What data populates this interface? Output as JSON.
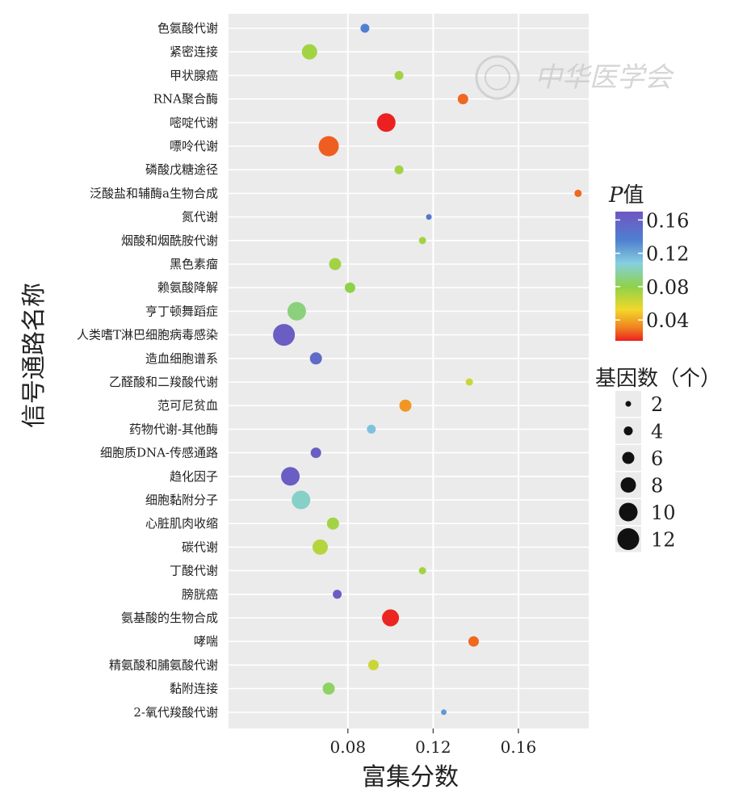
{
  "watermark_text": "中华医学会",
  "chart_data": {
    "type": "scatter",
    "xlabel": "富集分数",
    "ylabel": "信号通路名称",
    "xticks": [
      "0.08",
      "0.12",
      "0.16"
    ],
    "xlim": [
      0.024,
      0.193
    ],
    "grid": true,
    "legend_position": "right",
    "color_legend": {
      "title_italic": "P",
      "title_rest": "值",
      "ticks": [
        "0.16",
        "0.12",
        "0.08",
        "0.04"
      ],
      "range": [
        0.015,
        0.17
      ]
    },
    "size_legend": {
      "title": "基因数（个）",
      "values": [
        "2",
        "4",
        "6",
        "8",
        "10",
        "12"
      ]
    },
    "points": [
      {
        "pathway": "色氨酸代谢",
        "x": 0.088,
        "genes": 4,
        "p": 0.14
      },
      {
        "pathway": "紧密连接",
        "x": 0.062,
        "genes": 8,
        "p": 0.075
      },
      {
        "pathway": "甲状腺癌",
        "x": 0.104,
        "genes": 4,
        "p": 0.075
      },
      {
        "pathway": "RNA聚合酶",
        "x": 0.134,
        "genes": 5,
        "p": 0.03
      },
      {
        "pathway": "嘧啶代谢",
        "x": 0.098,
        "genes": 10,
        "p": 0.015
      },
      {
        "pathway": "嘌呤代谢",
        "x": 0.071,
        "genes": 11,
        "p": 0.028
      },
      {
        "pathway": "磷酸戊糖途径",
        "x": 0.104,
        "genes": 4,
        "p": 0.075
      },
      {
        "pathway": "泛酸盐和辅酶a生物合成",
        "x": 0.188,
        "genes": 3,
        "p": 0.03
      },
      {
        "pathway": "氮代谢",
        "x": 0.118,
        "genes": 2,
        "p": 0.145
      },
      {
        "pathway": "烟酸和烟酰胺代谢",
        "x": 0.115,
        "genes": 3,
        "p": 0.075
      },
      {
        "pathway": "黑色素瘤",
        "x": 0.074,
        "genes": 6,
        "p": 0.075
      },
      {
        "pathway": "赖氨酸降解",
        "x": 0.081,
        "genes": 5,
        "p": 0.08
      },
      {
        "pathway": "亨丁顿舞蹈症",
        "x": 0.056,
        "genes": 10,
        "p": 0.09
      },
      {
        "pathway": "人类嗜T淋巴细胞病毒感染",
        "x": 0.05,
        "genes": 12,
        "p": 0.165
      },
      {
        "pathway": "造血细胞谱系",
        "x": 0.065,
        "genes": 6,
        "p": 0.155
      },
      {
        "pathway": "乙醛酸和二羧酸代谢",
        "x": 0.137,
        "genes": 3,
        "p": 0.065
      },
      {
        "pathway": "范可尼贫血",
        "x": 0.107,
        "genes": 6,
        "p": 0.04
      },
      {
        "pathway": "药物代谢-其他酶",
        "x": 0.091,
        "genes": 4,
        "p": 0.115
      },
      {
        "pathway": "细胞质DNA-传感通路",
        "x": 0.065,
        "genes": 5,
        "p": 0.165
      },
      {
        "pathway": "趋化因子",
        "x": 0.053,
        "genes": 10,
        "p": 0.165
      },
      {
        "pathway": "细胞黏附分子",
        "x": 0.058,
        "genes": 10,
        "p": 0.105
      },
      {
        "pathway": "心脏肌肉收缩",
        "x": 0.073,
        "genes": 6,
        "p": 0.075
      },
      {
        "pathway": "碳代谢",
        "x": 0.067,
        "genes": 8,
        "p": 0.07
      },
      {
        "pathway": "丁酸代谢",
        "x": 0.115,
        "genes": 3,
        "p": 0.075
      },
      {
        "pathway": "膀胱癌",
        "x": 0.075,
        "genes": 4,
        "p": 0.165
      },
      {
        "pathway": "氨基酸的生物合成",
        "x": 0.1,
        "genes": 9,
        "p": 0.016
      },
      {
        "pathway": "哮喘",
        "x": 0.139,
        "genes": 5,
        "p": 0.03
      },
      {
        "pathway": "精氨酸和脯氨酸代谢",
        "x": 0.092,
        "genes": 5,
        "p": 0.065
      },
      {
        "pathway": "黏附连接",
        "x": 0.071,
        "genes": 6,
        "p": 0.085
      },
      {
        "pathway": "2-氧代羧酸代谢",
        "x": 0.125,
        "genes": 2,
        "p": 0.13
      }
    ]
  }
}
